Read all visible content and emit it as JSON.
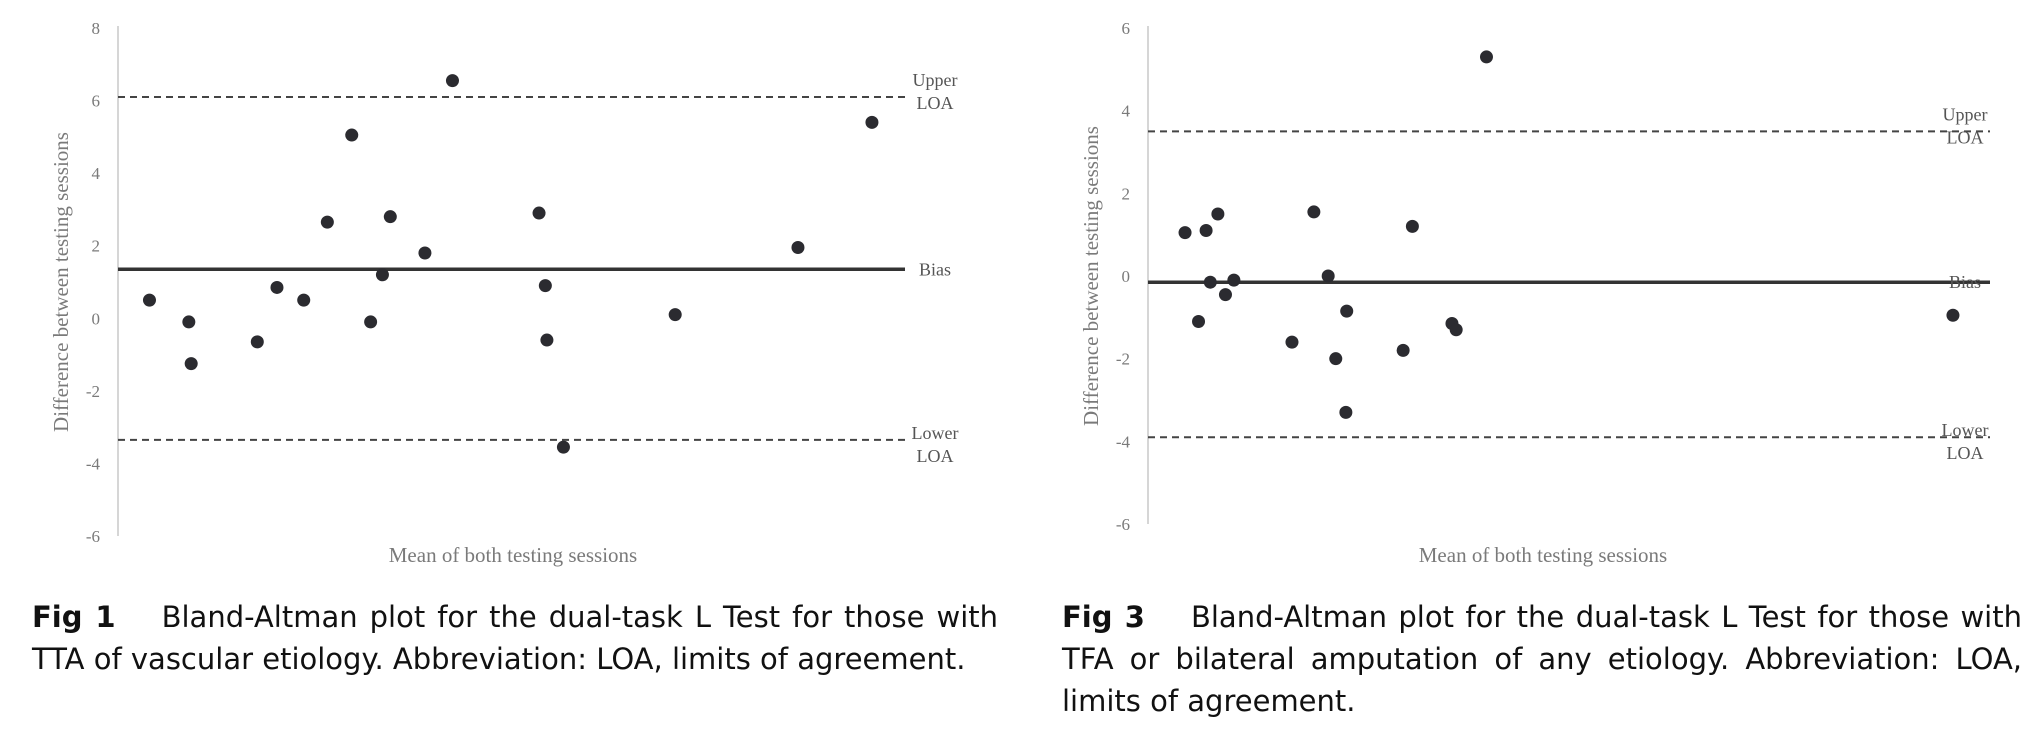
{
  "chart_data": [
    {
      "type": "scatter",
      "xlabel": "Mean of both testing sessions",
      "ylabel": "Difference between testing sessions",
      "ylim": [
        -6,
        8
      ],
      "yticks": [
        8,
        6,
        4,
        2,
        0,
        -2,
        -4,
        -6
      ],
      "xlim": [
        0,
        100
      ],
      "x_tick_labels": false,
      "grid": false,
      "reference_lines": [
        {
          "key": "upper",
          "label": "Upper LOA",
          "lines": [
            "Upper",
            "LOA"
          ],
          "value": 6.1,
          "style": "dashed"
        },
        {
          "key": "bias",
          "label": "Bias",
          "lines": [
            "Bias"
          ],
          "value": 1.35,
          "style": "solid"
        },
        {
          "key": "lower",
          "label": "Lower LOA",
          "lines": [
            "Lower",
            "LOA"
          ],
          "value": -3.35,
          "style": "dashed"
        }
      ],
      "points": [
        {
          "x": 4,
          "y": 0.5
        },
        {
          "x": 9,
          "y": -0.1
        },
        {
          "x": 9.3,
          "y": -1.25
        },
        {
          "x": 17.7,
          "y": -0.65
        },
        {
          "x": 20.2,
          "y": 0.85
        },
        {
          "x": 23.6,
          "y": 0.5
        },
        {
          "x": 26.6,
          "y": 2.65
        },
        {
          "x": 29.7,
          "y": 5.05
        },
        {
          "x": 32.1,
          "y": -0.1
        },
        {
          "x": 33.6,
          "y": 1.2
        },
        {
          "x": 34.6,
          "y": 2.8
        },
        {
          "x": 39.0,
          "y": 1.8
        },
        {
          "x": 42.5,
          "y": 6.55
        },
        {
          "x": 53.5,
          "y": 2.9
        },
        {
          "x": 54.3,
          "y": 0.9
        },
        {
          "x": 54.5,
          "y": -0.6
        },
        {
          "x": 56.6,
          "y": -3.55
        },
        {
          "x": 70.8,
          "y": 0.1
        },
        {
          "x": 86.4,
          "y": 1.95
        },
        {
          "x": 95.8,
          "y": 5.4
        }
      ]
    },
    {
      "type": "scatter",
      "xlabel": "Mean of both testing sessions",
      "ylabel": "Difference between testing sessions",
      "ylim": [
        -6,
        6
      ],
      "yticks": [
        6,
        4,
        2,
        0,
        -2,
        -4,
        -6
      ],
      "xlim": [
        0,
        100
      ],
      "x_tick_labels": false,
      "grid": false,
      "reference_lines": [
        {
          "key": "upper",
          "label": "Upper LOA",
          "lines": [
            "Upper",
            "LOA"
          ],
          "value": 3.5,
          "style": "dashed"
        },
        {
          "key": "bias",
          "label": "Bias",
          "lines": [
            "Bias"
          ],
          "value": -0.15,
          "style": "solid"
        },
        {
          "key": "lower",
          "label": "Lower LOA",
          "lines": [
            "Lower",
            "LOA"
          ],
          "value": -3.9,
          "style": "dashed"
        }
      ],
      "points": [
        {
          "x": 4.4,
          "y": 1.05
        },
        {
          "x": 6.0,
          "y": -1.1
        },
        {
          "x": 6.9,
          "y": 1.1
        },
        {
          "x": 7.4,
          "y": -0.15
        },
        {
          "x": 8.3,
          "y": 1.5
        },
        {
          "x": 9.2,
          "y": -0.45
        },
        {
          "x": 10.2,
          "y": -0.1
        },
        {
          "x": 17.1,
          "y": -1.6
        },
        {
          "x": 19.7,
          "y": 1.55
        },
        {
          "x": 21.4,
          "y": 0.0
        },
        {
          "x": 22.3,
          "y": -2.0
        },
        {
          "x": 23.5,
          "y": -3.3
        },
        {
          "x": 23.6,
          "y": -0.85
        },
        {
          "x": 30.3,
          "y": -1.8
        },
        {
          "x": 31.4,
          "y": 1.2
        },
        {
          "x": 36.1,
          "y": -1.15
        },
        {
          "x": 36.6,
          "y": -1.3
        },
        {
          "x": 40.2,
          "y": 5.3
        },
        {
          "x": 95.6,
          "y": -0.95
        }
      ]
    }
  ],
  "figures": [
    {
      "label": "Fig 1",
      "caption": "Bland-Altman plot for the dual-task L Test for those with TTA of vascular etiology. Abbreviation: LOA, limits of agreement."
    },
    {
      "label": "Fig 3",
      "caption": "Bland-Altman plot for the dual-task L Test for those with TFA or bilateral amputation of any etiology. Abbreviation: LOA, limits of agreement."
    }
  ],
  "colors": {
    "points": "#2b2b30",
    "bias_line": "#333333",
    "loa_line": "#444444",
    "axis": "#bfbfbf"
  }
}
